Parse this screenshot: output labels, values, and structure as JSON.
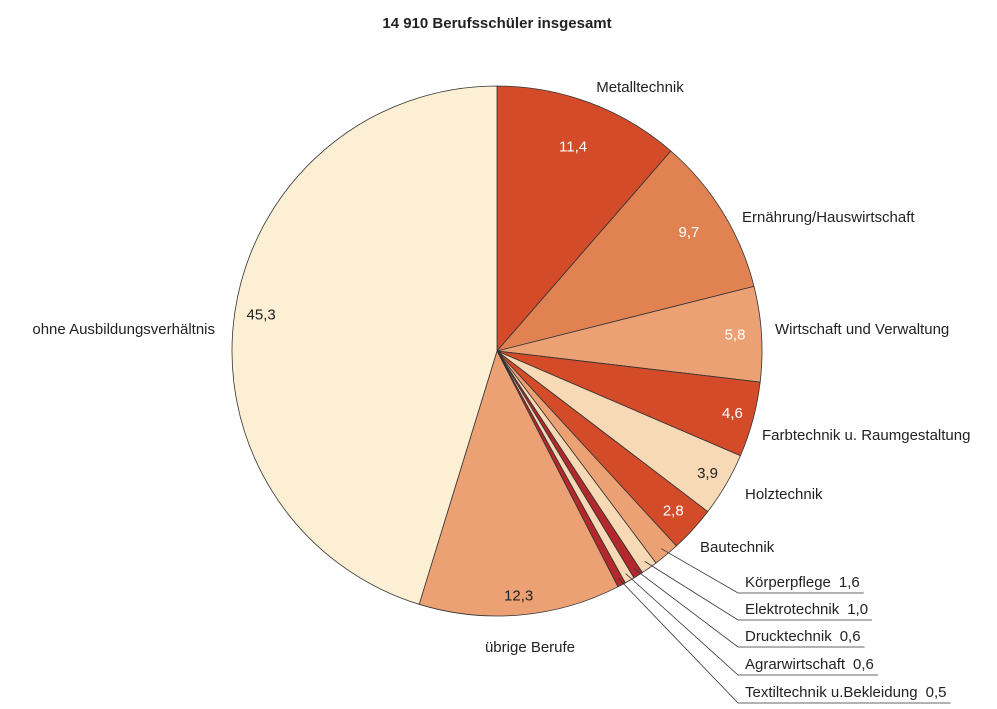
{
  "chart_data": {
    "type": "pie",
    "title": "14 910 Berufsschüler insgesamt",
    "categories": [
      "Metalltechnik",
      "Ernährung/Hauswirtschaft",
      "Wirtschaft und Verwaltung",
      "Farbtechnik u. Raumgestaltung",
      "Holztechnik",
      "Bautechnik",
      "Körperpflege",
      "Elektrotechnik",
      "Drucktechnik",
      "Agrarwirtschaft",
      "Textiltechnik u.Bekleidung",
      "übrige Berufe",
      "ohne Ausbildungsverhältnis"
    ],
    "values": [
      11.4,
      9.7,
      5.8,
      4.6,
      3.9,
      2.8,
      1.6,
      1.0,
      0.6,
      0.6,
      0.5,
      12.3,
      45.3
    ],
    "value_labels": [
      "11,4",
      "9,7",
      "5,8",
      "4,6",
      "3,9",
      "2,8",
      "1,6",
      "1,0",
      "0,6",
      "0,6",
      "0,5",
      "12,3",
      "45,3"
    ],
    "colors": [
      "#d44b2a",
      "#e08252",
      "#eba174",
      "#d44b2a",
      "#f8d9b6",
      "#d44b2a",
      "#eba174",
      "#f8d9b6",
      "#b3282c",
      "#f8d9b6",
      "#b3282c",
      "#eba174",
      "#fdefd3"
    ]
  }
}
